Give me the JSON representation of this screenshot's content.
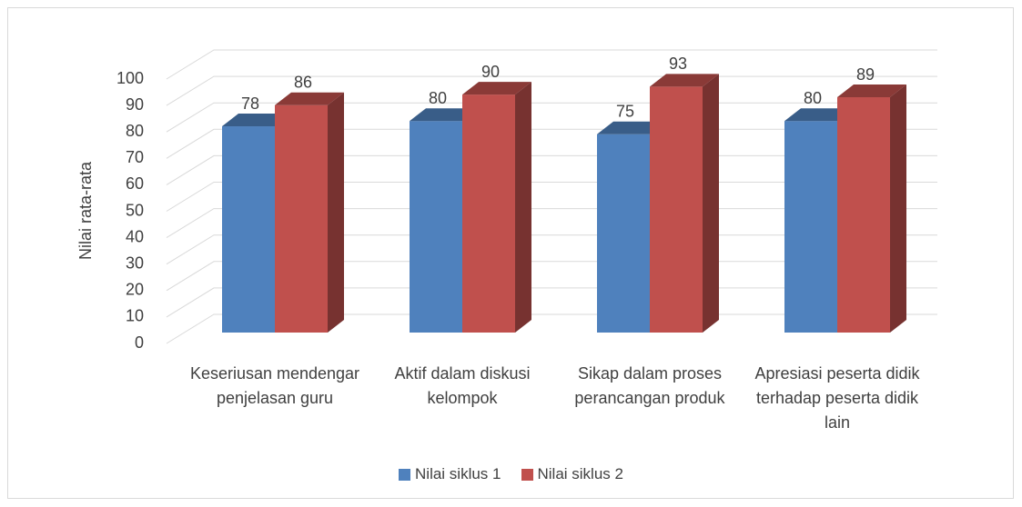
{
  "chart_data": {
    "type": "bar3d",
    "y_label": "Nilai rata-rata",
    "categories": [
      "Keseriusan mendengar penjelasan guru",
      "Aktif dalam diskusi kelompok",
      "Sikap dalam proses perancangan produk",
      "Apresiasi peserta didik terhadap peserta didik lain"
    ],
    "series": [
      {
        "name": "Nilai siklus 1",
        "color": "#4f81bd",
        "values": [
          78,
          80,
          75,
          80
        ]
      },
      {
        "name": "Nilai siklus 2",
        "color": "#c0504d",
        "values": [
          86,
          90,
          93,
          89
        ]
      }
    ],
    "ylim": [
      0,
      100
    ],
    "yticks": [
      0,
      10,
      20,
      30,
      40,
      50,
      60,
      70,
      80,
      90,
      100
    ],
    "grid": true,
    "legend": "bottom"
  }
}
